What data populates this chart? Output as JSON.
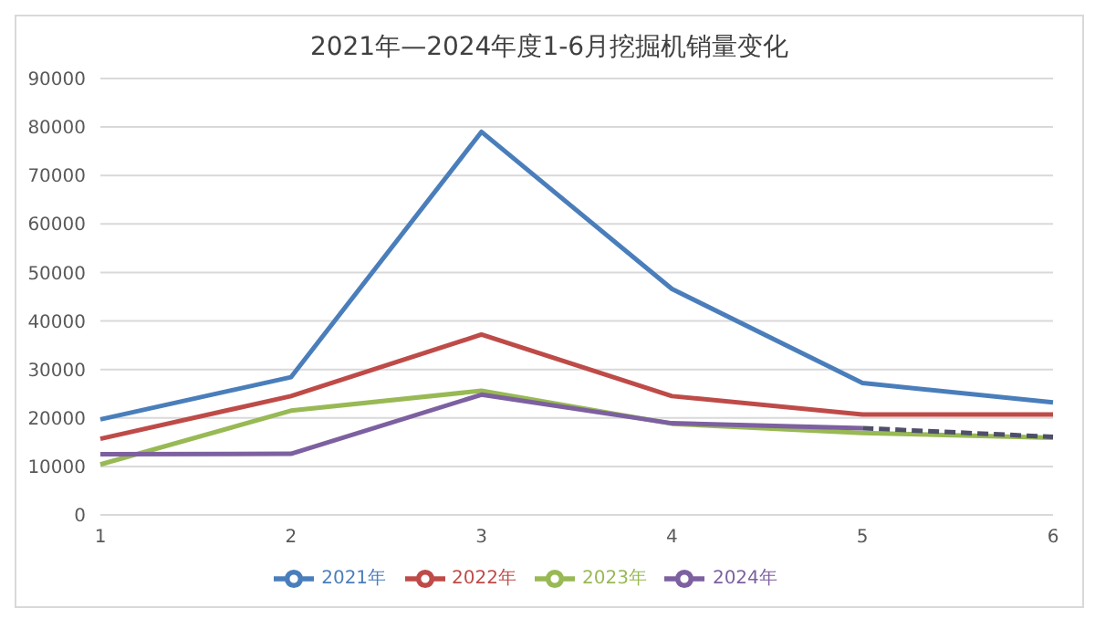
{
  "chart_data": {
    "type": "line",
    "title": "2021年—2024年度1-6月挖掘机销量变化",
    "categories": [
      "1",
      "2",
      "3",
      "4",
      "5",
      "6"
    ],
    "series": [
      {
        "name": "2021年",
        "color": "#4a7ebb",
        "values": [
          19700,
          28400,
          79000,
          46600,
          27200,
          23200
        ]
      },
      {
        "name": "2022年",
        "color": "#be4b48",
        "values": [
          15700,
          24500,
          37200,
          24500,
          20700,
          20700
        ]
      },
      {
        "name": "2023年",
        "color": "#98b954",
        "values": [
          10400,
          21500,
          25600,
          18800,
          16900,
          15900
        ]
      },
      {
        "name": "2024年",
        "color": "#7d60a0",
        "values": [
          12500,
          12600,
          24800,
          18900,
          17900,
          null
        ]
      },
      {
        "color": "#4f4f6a",
        "line_style": "dashed",
        "values": [
          null,
          null,
          null,
          null,
          17900,
          16100
        ]
      }
    ],
    "ylim": [
      0,
      90000
    ],
    "yticks": [
      0,
      10000,
      20000,
      30000,
      40000,
      50000,
      60000,
      70000,
      80000,
      90000
    ],
    "grid": "y",
    "legend": "bottom",
    "marker": "none",
    "line_style": "solid"
  }
}
